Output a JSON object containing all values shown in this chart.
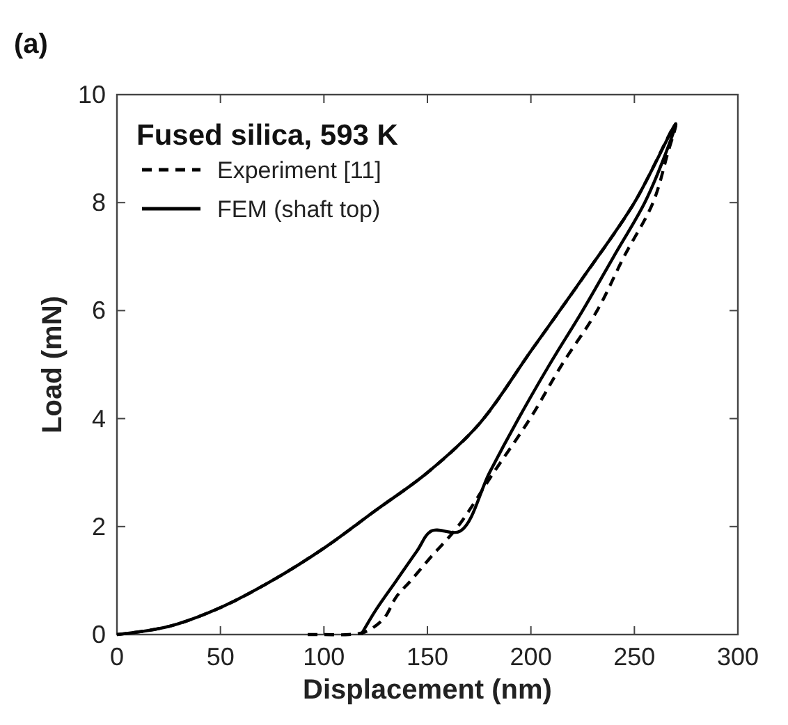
{
  "chart_data": {
    "type": "line",
    "title": "Fused silica, 593 K",
    "xlabel": "Displacement (nm)",
    "ylabel": "Load (mN)",
    "annotations": [
      "(a)"
    ],
    "xlim": [
      0,
      300
    ],
    "ylim": [
      0,
      10
    ],
    "xticks": [
      0,
      50,
      100,
      150,
      200,
      250,
      300
    ],
    "yticks": [
      0,
      2,
      4,
      6,
      8,
      10
    ],
    "legend": "top left",
    "grid": false,
    "series": [
      {
        "name": "Experiment [11]",
        "color": "#000000",
        "line_style": "dashed",
        "x": [
          0,
          25,
          50,
          75,
          100,
          125,
          150,
          175,
          200,
          225,
          250,
          270,
          266,
          259,
          245,
          232,
          215,
          199.6,
          182,
          164.7,
          152,
          142,
          135,
          129,
          120,
          112,
          100,
          90
        ],
        "values": [
          0,
          0.15,
          0.5,
          1.0,
          1.6,
          2.3,
          3.0,
          3.9,
          5.25,
          6.6,
          8.0,
          9.46,
          8.9,
          8.0,
          7.0,
          6.0,
          5.0,
          4.0,
          3.0,
          2.0,
          1.45,
          1.0,
          0.7,
          0.3,
          0.05,
          0,
          0,
          0
        ]
      },
      {
        "name": "FEM (shaft top)",
        "color": "#000000",
        "line_style": "solid",
        "x": [
          0,
          25,
          50,
          75,
          100,
          125,
          150,
          175,
          200,
          225,
          250,
          270,
          264,
          255,
          240,
          225,
          209,
          194,
          180,
          166,
          152,
          145,
          135,
          125,
          118
        ],
        "values": [
          0,
          0.15,
          0.5,
          1.0,
          1.6,
          2.3,
          3.0,
          3.9,
          5.25,
          6.6,
          8.0,
          9.46,
          8.8,
          8.0,
          7.0,
          6.0,
          5.0,
          4.0,
          3.0,
          1.92,
          1.92,
          1.55,
          1.0,
          0.45,
          0
        ]
      }
    ]
  }
}
